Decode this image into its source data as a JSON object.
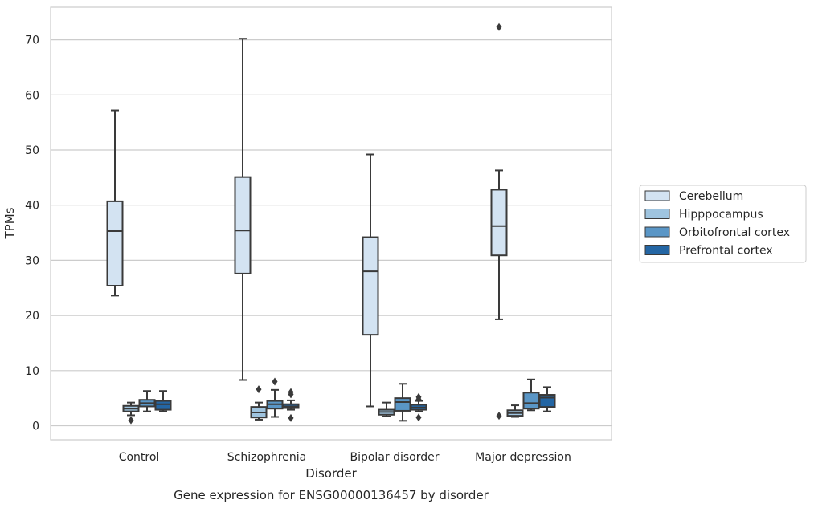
{
  "chart_data": {
    "type": "box",
    "title": "Gene expression for ENSG00000136457 by disorder",
    "xlabel": "Disorder",
    "ylabel": "TPMs",
    "ylim": [
      -2.5,
      75.8
    ],
    "yticks": [
      0,
      10,
      20,
      30,
      40,
      50,
      60,
      70
    ],
    "grid": true,
    "legend_position": "right",
    "categories": [
      "Control",
      "Schizophrenia",
      "Bipolar disorder",
      "Major depression"
    ],
    "series": [
      {
        "name": "Cerebellum",
        "color": "#d3e3f2",
        "boxes": [
          {
            "whislo": 23.6,
            "q1": 25.4,
            "med": 35.3,
            "q3": 40.7,
            "whishi": 57.2,
            "fliers": []
          },
          {
            "whislo": 8.3,
            "q1": 27.6,
            "med": 35.4,
            "q3": 45.1,
            "whishi": 70.2,
            "fliers": []
          },
          {
            "whislo": 3.5,
            "q1": 16.5,
            "med": 28.0,
            "q3": 34.2,
            "whishi": 49.2,
            "fliers": []
          },
          {
            "whislo": 19.3,
            "q1": 30.9,
            "med": 36.2,
            "q3": 42.8,
            "whishi": 46.3,
            "fliers": [
              1.8,
              72.3
            ]
          }
        ]
      },
      {
        "name": "Hipppocampus",
        "color": "#9fc4df",
        "boxes": [
          {
            "whislo": 1.9,
            "q1": 2.6,
            "med": 3.1,
            "q3": 3.6,
            "whishi": 4.2,
            "fliers": [
              1.0
            ]
          },
          {
            "whislo": 1.1,
            "q1": 1.5,
            "med": 2.4,
            "q3": 3.4,
            "whishi": 4.2,
            "fliers": [
              6.6
            ]
          },
          {
            "whislo": 1.7,
            "q1": 2.0,
            "med": 2.5,
            "q3": 2.9,
            "whishi": 4.2,
            "fliers": []
          },
          {
            "whislo": 1.6,
            "q1": 1.8,
            "med": 2.3,
            "q3": 2.8,
            "whishi": 3.7,
            "fliers": []
          }
        ]
      },
      {
        "name": "Orbitofrontal cortex",
        "color": "#5a96c6",
        "boxes": [
          {
            "whislo": 2.6,
            "q1": 3.5,
            "med": 4.1,
            "q3": 4.7,
            "whishi": 6.3,
            "fliers": []
          },
          {
            "whislo": 1.6,
            "q1": 3.1,
            "med": 3.9,
            "q3": 4.5,
            "whishi": 6.5,
            "fliers": [
              8.0
            ]
          },
          {
            "whislo": 0.9,
            "q1": 2.7,
            "med": 4.3,
            "q3": 5.0,
            "whishi": 7.6,
            "fliers": []
          },
          {
            "whislo": 2.8,
            "q1": 3.1,
            "med": 4.1,
            "q3": 6.0,
            "whishi": 8.4,
            "fliers": []
          }
        ]
      },
      {
        "name": "Prefrontal cortex",
        "color": "#2466a4",
        "boxes": [
          {
            "whislo": 2.6,
            "q1": 2.9,
            "med": 3.9,
            "q3": 4.5,
            "whishi": 6.3,
            "fliers": []
          },
          {
            "whislo": 2.9,
            "q1": 3.2,
            "med": 3.5,
            "q3": 3.9,
            "whishi": 4.6,
            "fliers": [
              1.4,
              5.7,
              6.1
            ]
          },
          {
            "whislo": 2.6,
            "q1": 2.9,
            "med": 3.3,
            "q3": 3.8,
            "whishi": 4.5,
            "fliers": [
              1.5,
              4.8,
              5.2
            ]
          },
          {
            "whislo": 2.6,
            "q1": 3.4,
            "med": 5.1,
            "q3": 5.6,
            "whishi": 7.0,
            "fliers": []
          }
        ]
      }
    ]
  }
}
